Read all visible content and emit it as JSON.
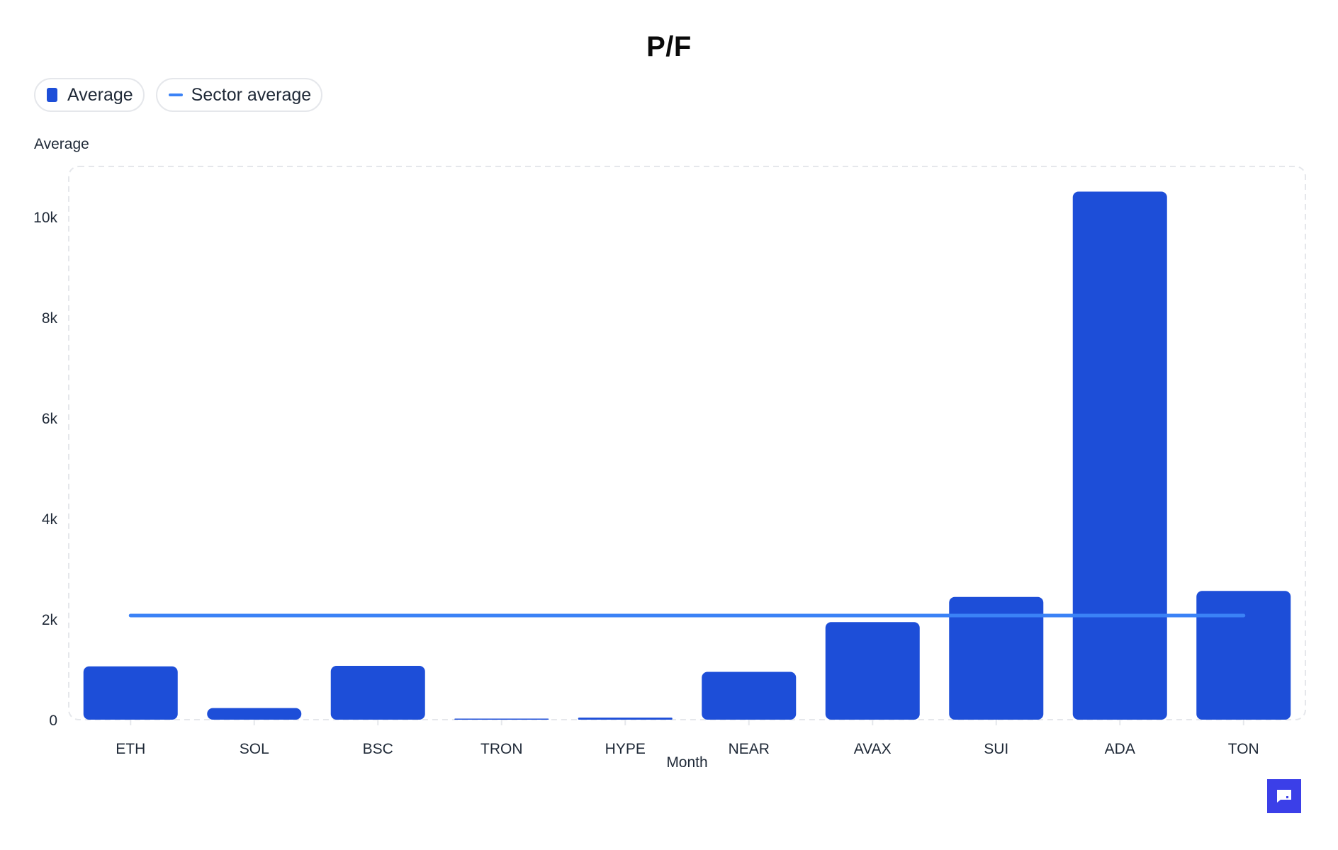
{
  "colors": {
    "bar": "#1d4ed8",
    "line": "#3b82f6",
    "grid": "#e5e7eb",
    "axis_text": "#1f2937",
    "fab": "#3b3fe8"
  },
  "legend": {
    "items": [
      {
        "label": "Average",
        "swatch": "bar"
      },
      {
        "label": "Sector average",
        "swatch": "line"
      }
    ]
  },
  "fab": {
    "icon": "chat-icon"
  },
  "chart_data": {
    "type": "bar",
    "title": "P/F",
    "xlabel": "Month",
    "ylabel": "Average",
    "categories": [
      "ETH",
      "SOL",
      "BSC",
      "TRON",
      "HYPE",
      "NEAR",
      "AVAX",
      "SUI",
      "ADA",
      "TON"
    ],
    "series": [
      {
        "name": "Average",
        "type": "bar",
        "values": [
          1060,
          230,
          1070,
          5,
          40,
          950,
          1940,
          2440,
          10500,
          2560
        ]
      },
      {
        "name": "Sector average",
        "type": "line",
        "values": [
          2070,
          2070,
          2070,
          2070,
          2070,
          2070,
          2070,
          2070,
          2070,
          2070
        ]
      }
    ],
    "ylim": [
      0,
      11000
    ],
    "yticks": [
      0,
      2000,
      4000,
      6000,
      8000,
      10000
    ],
    "ytick_labels": [
      "0",
      "2k",
      "4k",
      "6k",
      "8k",
      "10k"
    ],
    "grid": false,
    "legend_position": "top-left"
  }
}
